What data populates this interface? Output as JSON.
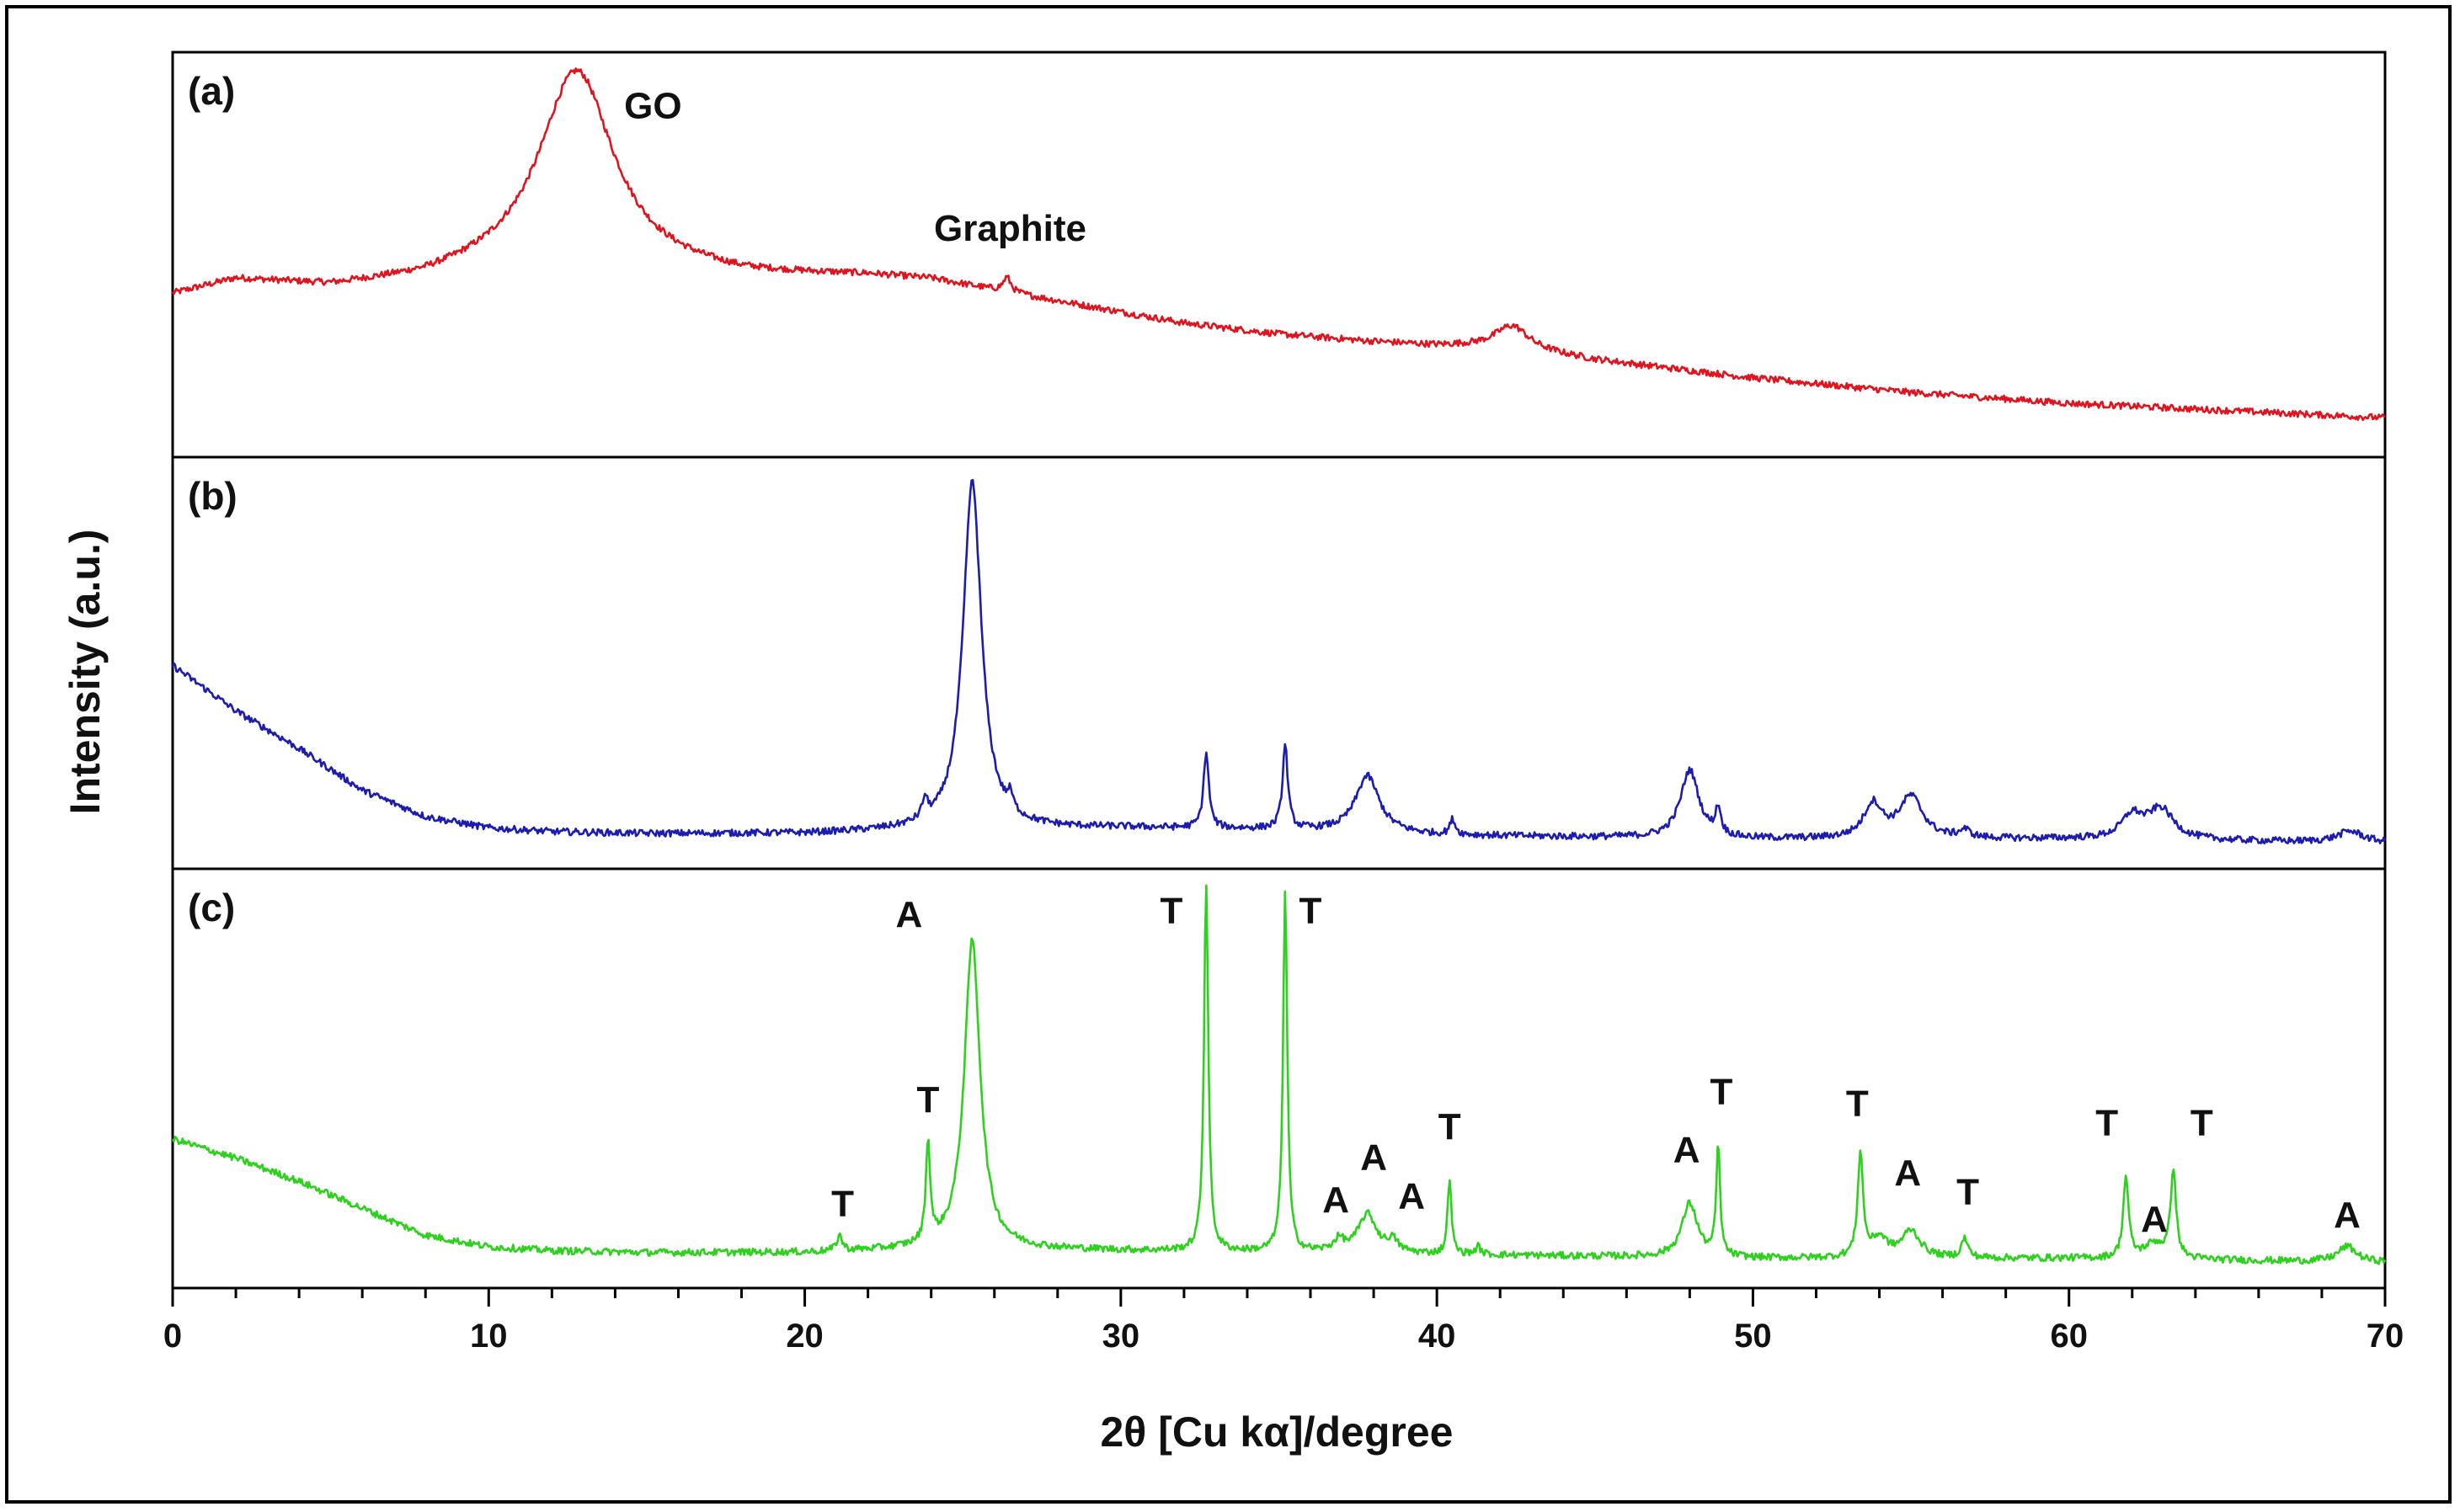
{
  "chart_data": {
    "type": "line",
    "xlabel": "2θ [Cu kα]/degree",
    "ylabel": "Intensity (a.u.)",
    "xlim": [
      0,
      70
    ],
    "x_ticks": [
      0,
      10,
      20,
      30,
      40,
      50,
      60,
      70
    ],
    "x_minor_step": 2,
    "grid": false,
    "panels": [
      {
        "label": "(a)",
        "color": "#e0141e",
        "ylim": [
          0,
          1
        ],
        "baseline": {
          "x": [
            0,
            2,
            5,
            8,
            12,
            15,
            18,
            20,
            22,
            24,
            26,
            28,
            30,
            32,
            35,
            38,
            40,
            42,
            45,
            48,
            50,
            55,
            60,
            65,
            70
          ],
          "y": [
            0.36,
            0.4,
            0.38,
            0.4,
            0.46,
            0.43,
            0.41,
            0.41,
            0.41,
            0.4,
            0.37,
            0.34,
            0.31,
            0.28,
            0.25,
            0.23,
            0.22,
            0.22,
            0.18,
            0.15,
            0.13,
            0.09,
            0.06,
            0.04,
            0.02
          ]
        },
        "peaks": [
          {
            "x": 12.8,
            "h": 0.53,
            "w": 1.4
          },
          {
            "x": 26.4,
            "h": 0.04,
            "w": 0.15
          },
          {
            "x": 42.4,
            "h": 0.06,
            "w": 0.6
          }
        ],
        "annotations": [
          {
            "text": "GO",
            "x": 15.2,
            "y": 0.85
          },
          {
            "text": "Graphite",
            "x": 26.5,
            "y": 0.51
          }
        ]
      },
      {
        "label": "(b)",
        "color": "#1c1cb0",
        "ylim": [
          0,
          1
        ],
        "baseline": {
          "x": [
            0,
            2,
            4,
            6,
            8,
            10,
            12,
            15,
            20,
            25,
            30,
            35,
            40,
            45,
            50,
            55,
            60,
            65,
            70
          ],
          "y": [
            0.48,
            0.36,
            0.26,
            0.15,
            0.08,
            0.05,
            0.04,
            0.035,
            0.035,
            0.045,
            0.05,
            0.045,
            0.03,
            0.025,
            0.02,
            0.02,
            0.02,
            0.015,
            0.01
          ]
        },
        "peaks": [
          {
            "x": 25.3,
            "h": 0.92,
            "w": 0.35
          },
          {
            "x": 23.8,
            "h": 0.05,
            "w": 0.1
          },
          {
            "x": 26.5,
            "h": 0.04,
            "w": 0.1
          },
          {
            "x": 32.7,
            "h": 0.2,
            "w": 0.1
          },
          {
            "x": 35.2,
            "h": 0.22,
            "w": 0.1
          },
          {
            "x": 37.8,
            "h": 0.15,
            "w": 0.45
          },
          {
            "x": 40.5,
            "h": 0.04,
            "w": 0.1
          },
          {
            "x": 48.0,
            "h": 0.18,
            "w": 0.35
          },
          {
            "x": 48.9,
            "h": 0.07,
            "w": 0.1
          },
          {
            "x": 53.8,
            "h": 0.09,
            "w": 0.35
          },
          {
            "x": 55.0,
            "h": 0.11,
            "w": 0.45
          },
          {
            "x": 56.7,
            "h": 0.02,
            "w": 0.2
          },
          {
            "x": 62.0,
            "h": 0.06,
            "w": 0.4
          },
          {
            "x": 62.9,
            "h": 0.08,
            "w": 0.5
          },
          {
            "x": 68.9,
            "h": 0.03,
            "w": 0.5
          }
        ],
        "annotations": []
      },
      {
        "label": "(c)",
        "color": "#2ed11e",
        "ylim": [
          0,
          1
        ],
        "baseline": {
          "x": [
            0,
            2,
            4,
            6,
            8,
            10,
            12,
            15,
            20,
            25,
            30,
            35,
            40,
            45,
            50,
            55,
            60,
            65,
            70
          ],
          "y": [
            0.33,
            0.28,
            0.22,
            0.15,
            0.08,
            0.05,
            0.04,
            0.035,
            0.035,
            0.045,
            0.04,
            0.035,
            0.03,
            0.025,
            0.02,
            0.02,
            0.02,
            0.015,
            0.01
          ]
        },
        "peaks": [
          {
            "x": 21.1,
            "h": 0.04,
            "w": 0.1
          },
          {
            "x": 23.9,
            "h": 0.26,
            "w": 0.08
          },
          {
            "x": 25.3,
            "h": 0.8,
            "w": 0.3
          },
          {
            "x": 32.7,
            "h": 0.96,
            "w": 0.08
          },
          {
            "x": 35.2,
            "h": 0.93,
            "w": 0.08
          },
          {
            "x": 36.9,
            "h": 0.03,
            "w": 0.2
          },
          {
            "x": 37.8,
            "h": 0.1,
            "w": 0.35
          },
          {
            "x": 38.6,
            "h": 0.03,
            "w": 0.2
          },
          {
            "x": 40.4,
            "h": 0.2,
            "w": 0.07
          },
          {
            "x": 41.3,
            "h": 0.02,
            "w": 0.1
          },
          {
            "x": 48.0,
            "h": 0.14,
            "w": 0.3
          },
          {
            "x": 48.9,
            "h": 0.29,
            "w": 0.07
          },
          {
            "x": 53.4,
            "h": 0.27,
            "w": 0.1
          },
          {
            "x": 54.0,
            "h": 0.05,
            "w": 0.3
          },
          {
            "x": 55.0,
            "h": 0.07,
            "w": 0.35
          },
          {
            "x": 56.7,
            "h": 0.05,
            "w": 0.12
          },
          {
            "x": 61.8,
            "h": 0.21,
            "w": 0.1
          },
          {
            "x": 62.7,
            "h": 0.04,
            "w": 0.4
          },
          {
            "x": 63.3,
            "h": 0.23,
            "w": 0.1
          },
          {
            "x": 68.8,
            "h": 0.04,
            "w": 0.35
          }
        ],
        "annotations": [
          {
            "text": "T",
            "x": 21.2,
            "y": 0.13
          },
          {
            "text": "T",
            "x": 23.9,
            "y": 0.4
          },
          {
            "text": "A",
            "x": 23.3,
            "y": 0.88
          },
          {
            "text": "T",
            "x": 31.6,
            "y": 0.89
          },
          {
            "text": "T",
            "x": 36.0,
            "y": 0.89
          },
          {
            "text": "A",
            "x": 36.8,
            "y": 0.14
          },
          {
            "text": "A",
            "x": 38.0,
            "y": 0.25
          },
          {
            "text": "A",
            "x": 39.2,
            "y": 0.15
          },
          {
            "text": "T",
            "x": 40.4,
            "y": 0.33
          },
          {
            "text": "A",
            "x": 47.9,
            "y": 0.27
          },
          {
            "text": "T",
            "x": 49.0,
            "y": 0.42
          },
          {
            "text": "T",
            "x": 53.3,
            "y": 0.39
          },
          {
            "text": "A",
            "x": 54.9,
            "y": 0.21
          },
          {
            "text": "T",
            "x": 56.8,
            "y": 0.16
          },
          {
            "text": "T",
            "x": 61.2,
            "y": 0.34
          },
          {
            "text": "A",
            "x": 62.7,
            "y": 0.09
          },
          {
            "text": "T",
            "x": 64.2,
            "y": 0.34
          },
          {
            "text": "A",
            "x": 68.8,
            "y": 0.1
          }
        ]
      }
    ]
  }
}
